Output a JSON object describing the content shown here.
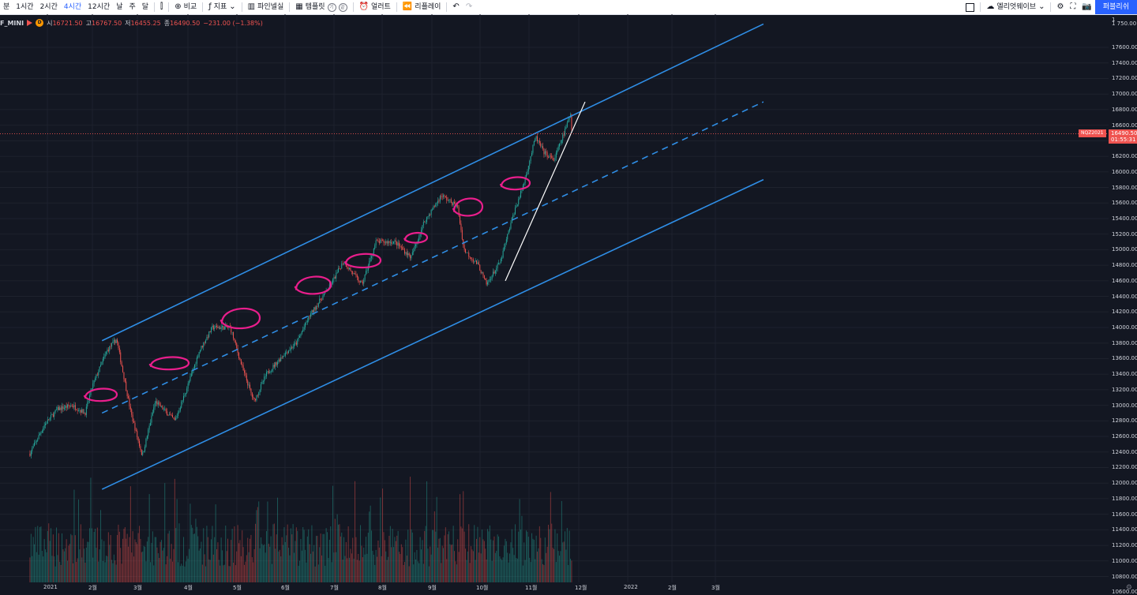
{
  "toolbar": {
    "intervals": [
      {
        "label": "분",
        "active": false
      },
      {
        "label": "1시간",
        "active": false
      },
      {
        "label": "2시간",
        "active": false
      },
      {
        "label": "4시간",
        "active": true
      },
      {
        "label": "12시간",
        "active": false
      },
      {
        "label": "날",
        "active": false
      },
      {
        "label": "주",
        "active": false
      },
      {
        "label": "달",
        "active": false
      }
    ],
    "compare_label": "비교",
    "indicators_label": "지표",
    "pine_label": "파인넬실",
    "templates_label": "템플릿",
    "alert_label": "얼러트",
    "replay_label": "리플레이",
    "layout_label": "엘리엇웨이브",
    "publish_label": "퍼블리쉬",
    "circle_a": "기",
    "circle_b": "끝"
  },
  "legend": {
    "symbol": "F_MINI",
    "delay_badge": "D",
    "open_label": "시",
    "open": "16721.50",
    "high_label": "고",
    "high": "16767.50",
    "low_label": "저",
    "low": "16455.25",
    "close_label": "종",
    "close": "16490.50",
    "change": "−231.00 (−1.38%)"
  },
  "price_axis": {
    "top_label": "1",
    "labels": [
      "17600.00",
      "17400.00",
      "17200.00",
      "17000.00",
      "16800.00",
      "16600.00",
      "16200.00",
      "16000.00",
      "15800.00",
      "15600.00",
      "15400.00",
      "15200.00",
      "15000.00",
      "14800.00",
      "14600.00",
      "14400.00",
      "14200.00",
      "14000.00",
      "13800.00",
      "13600.00",
      "13400.00",
      "13200.00",
      "13000.00",
      "12800.00",
      "12600.00",
      "12400.00",
      "12200.00",
      "12000.00",
      "11800.00",
      "11600.00",
      "11400.00",
      "11200.00",
      "11000.00",
      "10800.00",
      "10600.00"
    ],
    "partial_label": "1 750.00",
    "last_price": "16490.50",
    "countdown": "01:55:31",
    "symbol_tag": "NQZ2021"
  },
  "time_axis": {
    "labels": [
      "2021",
      "2월",
      "3월",
      "4월",
      "5월",
      "6월",
      "7월",
      "8월",
      "9월",
      "10월",
      "11월",
      "12월",
      "2022",
      "2월",
      "3월"
    ]
  },
  "chart_data": {
    "type": "candlestick",
    "symbol": "F_MINI",
    "timeframe": "4시간",
    "ylim": [
      10600,
      17750
    ],
    "last_price": 16490.5,
    "ohlc_last": {
      "open": 16721.5,
      "high": 16767.5,
      "low": 16455.25,
      "close": 16490.5
    },
    "price_path": [
      [
        "2020-12-20",
        12380
      ],
      [
        "2020-12-30",
        12750
      ],
      [
        "2021-01-08",
        12950
      ],
      [
        "2021-01-18",
        13000
      ],
      [
        "2021-01-27",
        12900
      ],
      [
        "2021-02-01",
        13250
      ],
      [
        "2021-02-10",
        13700
      ],
      [
        "2021-02-16",
        13850
      ],
      [
        "2021-02-25",
        12900
      ],
      [
        "2021-03-04",
        12350
      ],
      [
        "2021-03-12",
        13050
      ],
      [
        "2021-03-24",
        12800
      ],
      [
        "2021-03-31",
        13200
      ],
      [
        "2021-04-08",
        13700
      ],
      [
        "2021-04-16",
        14000
      ],
      [
        "2021-04-27",
        14000
      ],
      [
        "2021-05-05",
        13450
      ],
      [
        "2021-05-12",
        13050
      ],
      [
        "2021-05-20",
        13400
      ],
      [
        "2021-05-31",
        13650
      ],
      [
        "2021-06-08",
        13800
      ],
      [
        "2021-06-16",
        14150
      ],
      [
        "2021-06-29",
        14550
      ],
      [
        "2021-07-07",
        14850
      ],
      [
        "2021-07-19",
        14550
      ],
      [
        "2021-07-28",
        15100
      ],
      [
        "2021-08-09",
        15100
      ],
      [
        "2021-08-19",
        14900
      ],
      [
        "2021-08-27",
        15350
      ],
      [
        "2021-09-07",
        15700
      ],
      [
        "2021-09-17",
        15550
      ],
      [
        "2021-09-21",
        15000
      ],
      [
        "2021-09-30",
        14800
      ],
      [
        "2021-10-05",
        14550
      ],
      [
        "2021-10-14",
        14850
      ],
      [
        "2021-10-22",
        15450
      ],
      [
        "2021-10-28",
        15800
      ],
      [
        "2021-11-05",
        16450
      ],
      [
        "2021-11-10",
        16250
      ],
      [
        "2021-11-16",
        16150
      ],
      [
        "2021-11-23",
        16550
      ],
      [
        "2021-11-26",
        16750
      ],
      [
        "2021-11-27",
        16490
      ]
    ],
    "drawings": {
      "channel_upper": [
        [
          "2021-02-07",
          13830
        ],
        [
          "2022-04-01",
          17900
        ]
      ],
      "channel_mid": [
        [
          "2021-02-07",
          12900
        ],
        [
          "2022-04-01",
          16900
        ]
      ],
      "channel_lower": [
        [
          "2021-02-07",
          11920
        ],
        [
          "2022-04-01",
          15900
        ]
      ],
      "trend_line_white": [
        [
          "2021-10-17",
          14600
        ],
        [
          "2021-12-05",
          16900
        ]
      ],
      "highlight_count": 10
    },
    "colors": {
      "up": "#26a69a",
      "down": "#ef5350",
      "channel": "#2f8ee6",
      "highlight": "#e91e8c",
      "trend": "#ffffff"
    }
  }
}
